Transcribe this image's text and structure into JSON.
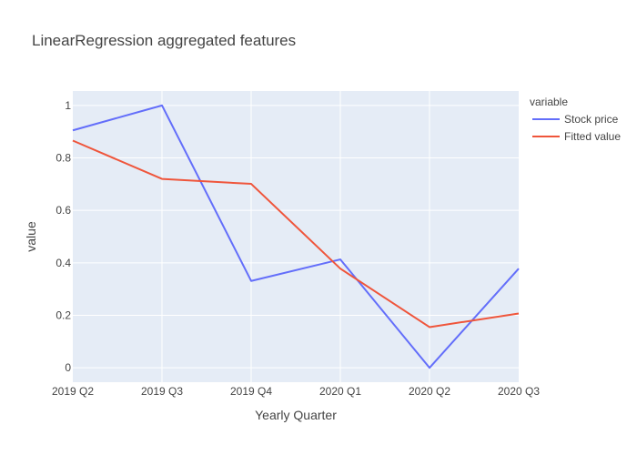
{
  "chart_data": {
    "type": "line",
    "title": "LinearRegression aggregated features",
    "xlabel": "Yearly Quarter",
    "ylabel": "value",
    "categories": [
      "2019 Q2",
      "2019 Q3",
      "2019 Q4",
      "2020 Q1",
      "2020 Q2",
      "2020 Q3"
    ],
    "ylim": [
      -0.055,
      1.055
    ],
    "yticks": [
      0,
      0.2,
      0.4,
      0.6,
      0.8,
      1
    ],
    "ytick_labels": [
      "0",
      "0.2",
      "0.4",
      "0.6",
      "0.8",
      "1"
    ],
    "grid": true,
    "legend": {
      "title": "variable",
      "position": "right"
    },
    "series": [
      {
        "name": "Stock price",
        "color": "#636efa",
        "values": [
          0.905,
          1.0,
          0.331,
          0.413,
          0.0,
          0.378
        ]
      },
      {
        "name": "Fitted value",
        "color": "#ef553b",
        "values": [
          0.866,
          0.72,
          0.701,
          0.378,
          0.155,
          0.207
        ]
      }
    ],
    "plot_background": "#e5ecf6",
    "grid_color": "#ffffff"
  }
}
